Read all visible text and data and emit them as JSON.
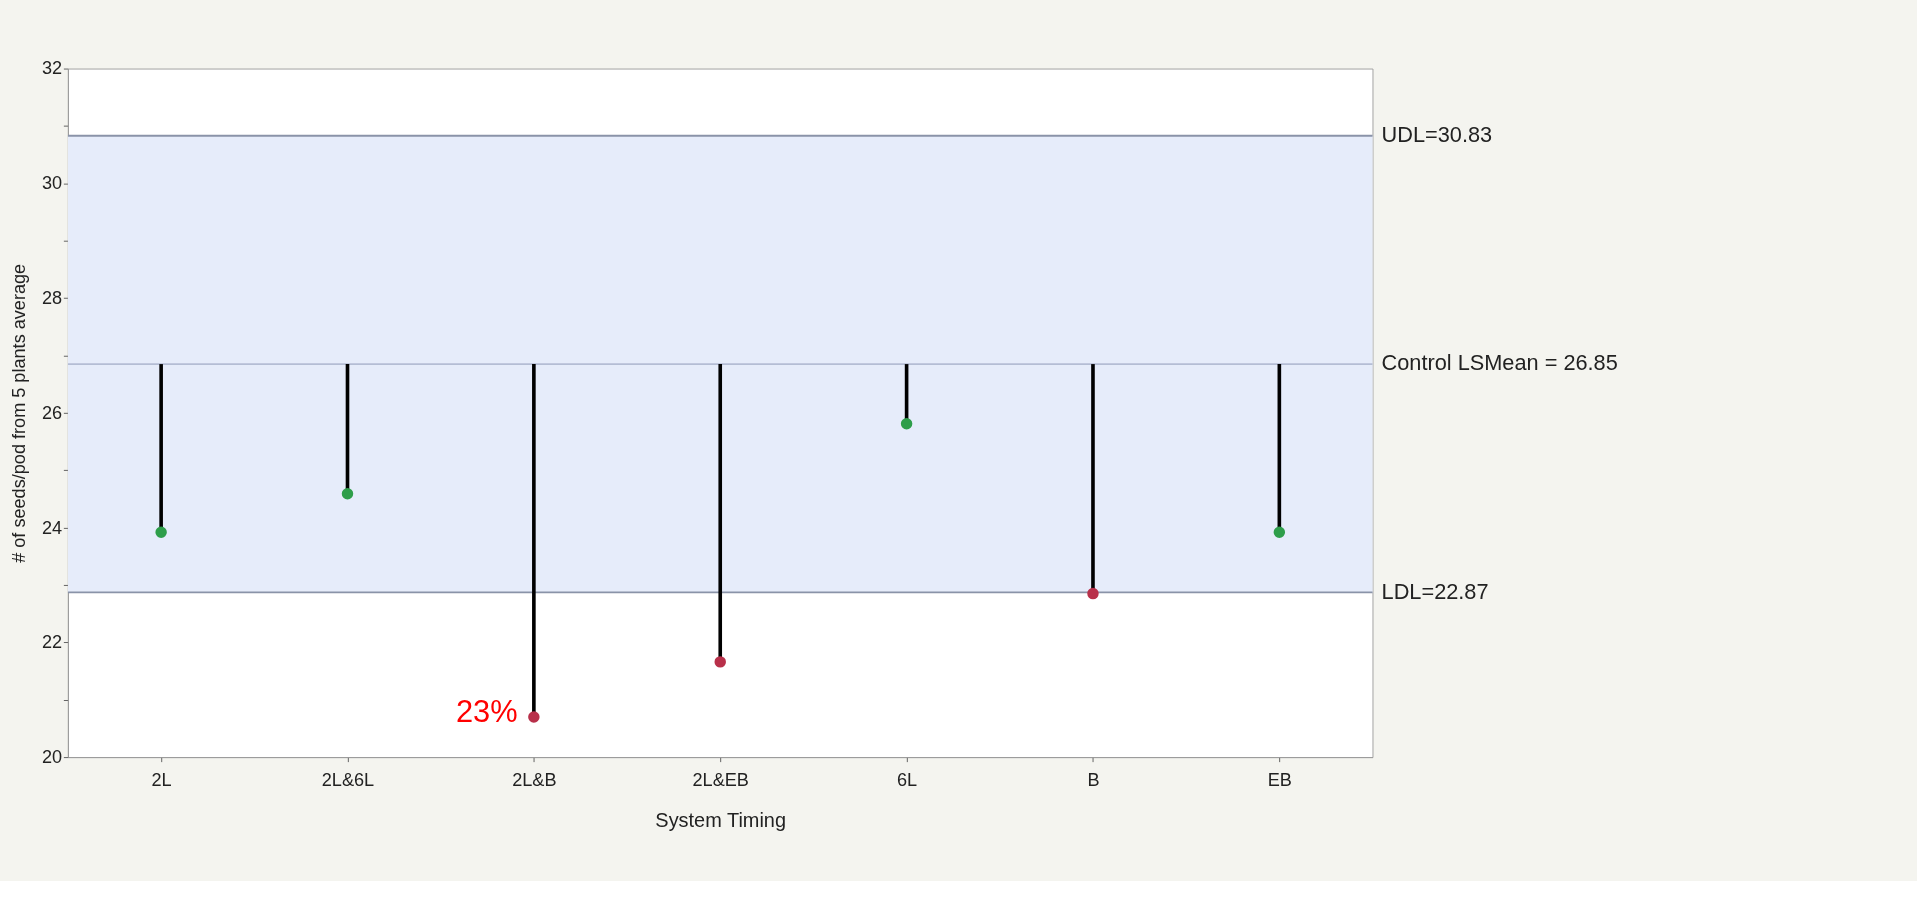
{
  "chart_data": {
    "type": "lollipop",
    "xlabel": "System Timing",
    "ylabel": "# of seeds/pod from 5 plants average",
    "categories": [
      "2L",
      "2L&6L",
      "2L&B",
      "2L&EB",
      "6L",
      "B",
      "EB"
    ],
    "values": [
      23.92,
      24.59,
      20.7,
      21.66,
      25.81,
      22.85,
      23.92
    ],
    "colors": [
      "#2e9e4a",
      "#2e9e4a",
      "#b8304a",
      "#b8304a",
      "#2e9e4a",
      "#b8304a",
      "#2e9e4a"
    ],
    "errors": [
      [
        23.92,
        26.85
      ],
      [
        24.59,
        26.85
      ],
      [
        20.7,
        26.85
      ],
      [
        21.66,
        26.85
      ],
      [
        25.81,
        26.85
      ],
      [
        22.85,
        26.85
      ],
      [
        23.92,
        26.85
      ]
    ],
    "ylim": [
      20,
      32
    ],
    "yticks": [
      20,
      {
        "value": 21,
        "label": null
      },
      22,
      {
        "value": 23,
        "label": null
      },
      24,
      {
        "value": 25,
        "label": null
      },
      26,
      {
        "value": 27,
        "label": null
      },
      28,
      {
        "value": 29,
        "label": null
      },
      30,
      {
        "value": 31,
        "label": null
      },
      32
    ],
    "ref_lines": [
      {
        "axis": "y",
        "value": 30.83,
        "label": "UDL=30.83",
        "color": "#8a93a8"
      },
      {
        "axis": "y",
        "value": 26.85,
        "label": "Control LSMean = 26.85",
        "color": "#b4bdd4"
      },
      {
        "axis": "y",
        "value": 22.87,
        "label": "LDL=22.87",
        "color": "#8a93a8"
      }
    ],
    "bands": [
      {
        "axis": "y",
        "from": 22.87,
        "to": 30.83,
        "label": null,
        "color": "#e6ecfa"
      }
    ],
    "annotations": [
      {
        "text": "23%",
        "x": "2L&B",
        "y": 20.7
      }
    ],
    "grid": false,
    "marker": "circle"
  }
}
